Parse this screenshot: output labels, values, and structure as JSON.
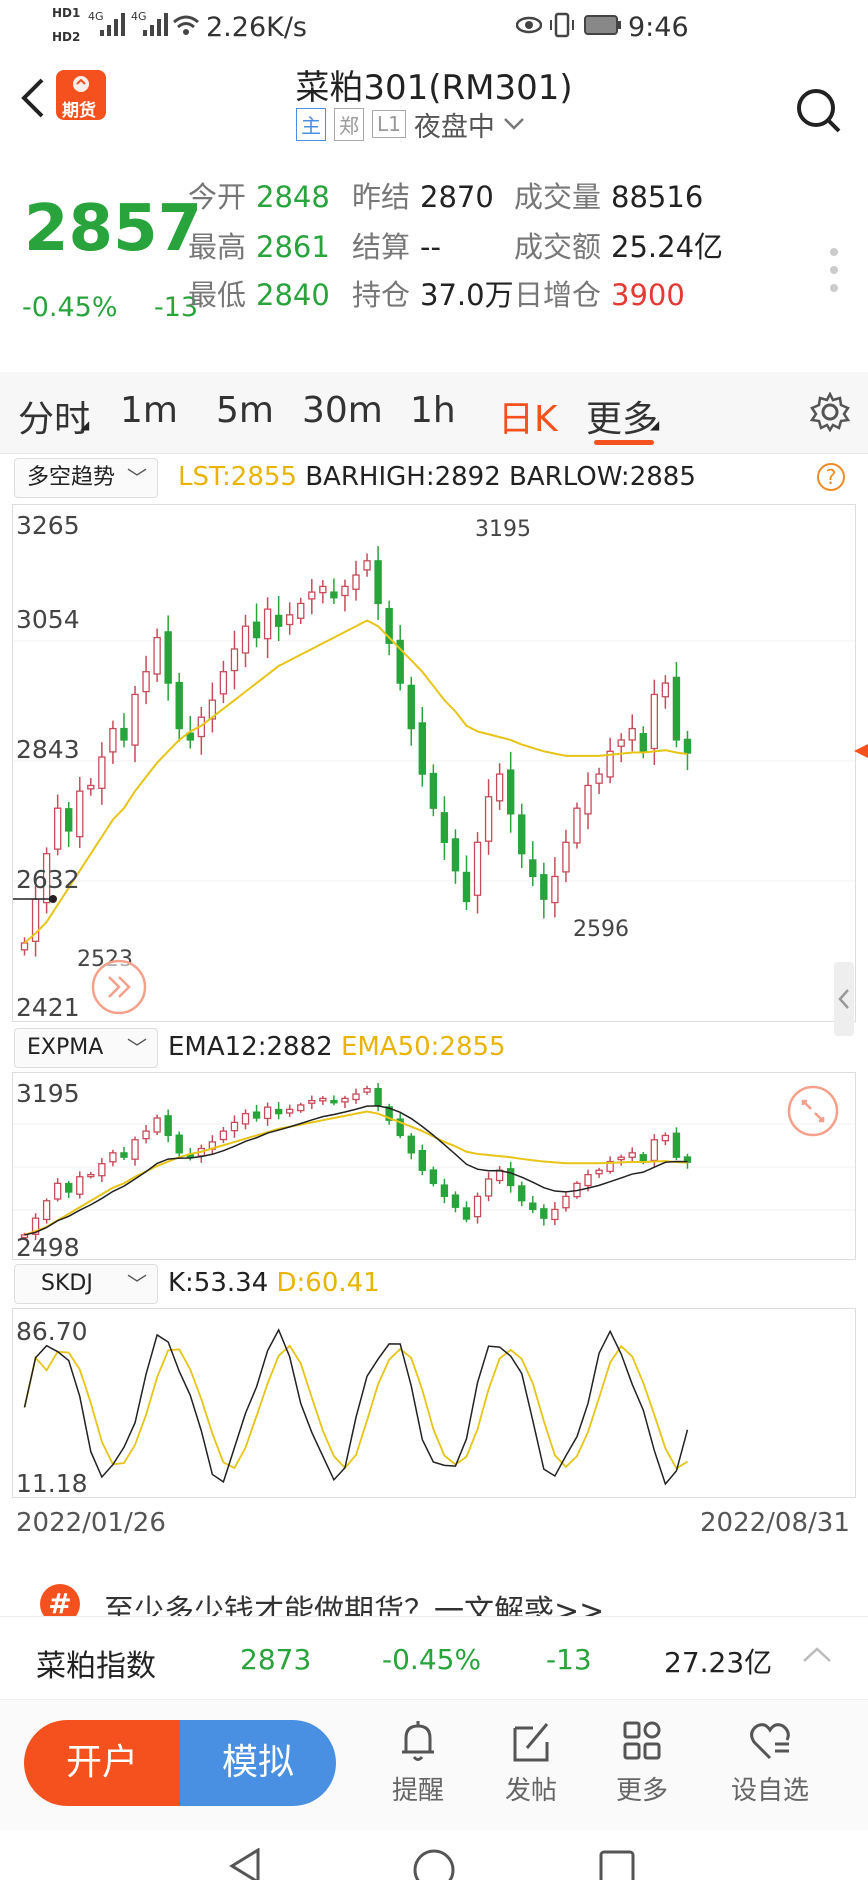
{
  "status_bar": {
    "network_speed": "2.26K/s",
    "time": "9:46",
    "sim1": "HD1",
    "sim2": "HD2",
    "net1": "4G",
    "net2": "4G"
  },
  "header": {
    "title": "菜粕301(RM301)",
    "tag_main": "主",
    "tag_exchange": "郑",
    "tag_level": "L1",
    "session": "夜盘中",
    "logo_text": "期货"
  },
  "quote": {
    "price": "2857",
    "change_pct": "-0.45%",
    "change": "-13",
    "stats": [
      {
        "label": "今开",
        "value": "2848"
      },
      {
        "label": "昨结",
        "value": "2870"
      },
      {
        "label": "成交量",
        "value": "88516"
      },
      {
        "label": "最高",
        "value": "2861"
      },
      {
        "label": "结算",
        "value": "--"
      },
      {
        "label": "成交额",
        "value": "25.24亿"
      },
      {
        "label": "最低",
        "value": "2840"
      },
      {
        "label": "持仓",
        "value": "37.0万"
      },
      {
        "label": "日增仓",
        "value": "3900"
      }
    ]
  },
  "tabs": [
    "分时",
    "1m",
    "5m",
    "30m",
    "1h",
    "日K",
    "更多"
  ],
  "main_chart": {
    "indicator_select": "多空趋势",
    "lst": "LST:2855",
    "barhigh": "BARHIGH:2892",
    "barlow": "BARLOW:2885",
    "y_labels": [
      "3265",
      "3054",
      "2843",
      "2632",
      "2421"
    ],
    "high_mark": "3195",
    "low_mark": "2596",
    "start_mark": "2523"
  },
  "expma_chart": {
    "indicator_select": "EXPMA",
    "ema12": "EMA12:2882",
    "ema50": "EMA50:2855",
    "y_top": "3195",
    "y_bottom": "2498"
  },
  "skdj_chart": {
    "indicator_select": "SKDJ",
    "k": "K:53.34",
    "d": "D:60.41",
    "y_top": "86.70",
    "y_bottom": "11.18"
  },
  "dates": {
    "start": "2022/01/26",
    "end": "2022/08/31"
  },
  "ad_text": "至少多少钱才能做期货？一文解惑>>",
  "index_bar": {
    "name": "菜粕指数",
    "price": "2873",
    "pct": "-0.45%",
    "change": "-13",
    "amount": "27.23亿"
  },
  "toolbar": {
    "open_account": "开户",
    "simulate": "模拟",
    "items": [
      "提醒",
      "发帖",
      "更多",
      "设自选"
    ]
  },
  "colors": {
    "up": "#c84b5a",
    "down": "#29a33b",
    "accent": "#f4511e",
    "blue": "#4a90e2",
    "yellow": "#e8c417"
  },
  "chart_data": {
    "type": "candlestick",
    "x_range": [
      "2022/01/26",
      "2022/08/31"
    ],
    "ylim": [
      2421,
      3265
    ],
    "series": [
      {
        "name": "close",
        "values": [
          2523,
          2600,
          2680,
          2760,
          2720,
          2790,
          2800,
          2850,
          2900,
          2880,
          2960,
          3000,
          3060,
          2980,
          2900,
          2880,
          2920,
          2950,
          3000,
          3040,
          3080,
          3060,
          3110,
          3080,
          3100,
          3120,
          3140,
          3150,
          3130,
          3150,
          3170,
          3195,
          3120,
          3050,
          2980,
          2900,
          2820,
          2760,
          2700,
          2650,
          2596,
          2700,
          2780,
          2820,
          2750,
          2680,
          2640,
          2600,
          2640,
          2700,
          2760,
          2800,
          2820,
          2860,
          2880,
          2900,
          2860,
          2960,
          2980,
          2880,
          2857
        ]
      },
      {
        "name": "LST",
        "values": [
          2523,
          2540,
          2560,
          2590,
          2620,
          2650,
          2680,
          2710,
          2740,
          2760,
          2790,
          2815,
          2840,
          2860,
          2880,
          2895,
          2905,
          2920,
          2935,
          2950,
          2965,
          2980,
          2995,
          3010,
          3020,
          3030,
          3040,
          3050,
          3060,
          3070,
          3080,
          3090,
          3080,
          3060,
          3040,
          3020,
          3000,
          2975,
          2950,
          2930,
          2905,
          2895,
          2890,
          2885,
          2880,
          2872,
          2866,
          2860,
          2856,
          2852,
          2852,
          2852,
          2852,
          2854,
          2856,
          2858,
          2858,
          2860,
          2862,
          2858,
          2855
        ]
      }
    ]
  }
}
